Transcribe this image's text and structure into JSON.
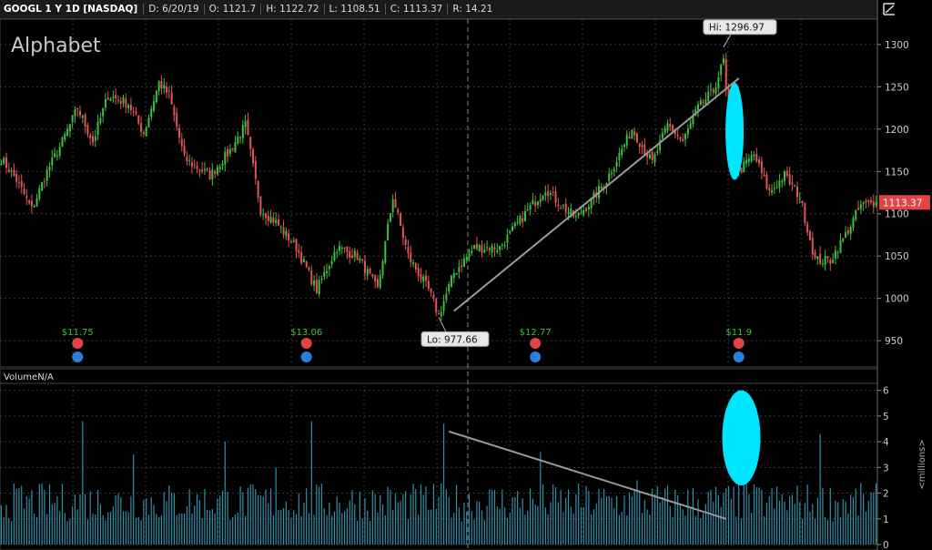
{
  "header": {
    "symbol": "GOOGL 1 Y 1D [NASDAQ]",
    "date": "D: 6/20/19",
    "open": "O: 1121.7",
    "high": "H: 1122.72",
    "low": "L: 1108.51",
    "close": "C: 1113.37",
    "range": "R: 14.21",
    "icon": "expand-icon"
  },
  "watermark": "Alphabet",
  "colors": {
    "up": "#3fbf3f",
    "down": "#e05555",
    "volume": "#2f8fa8",
    "highlight": "#00e5ff",
    "price_badge": "#e04444"
  },
  "chart_data": [
    {
      "type": "candlestick",
      "title": "GOOGL 1 Y 1D [NASDAQ]",
      "ylim": [
        920,
        1330
      ],
      "yticks": [
        950,
        1000,
        1050,
        1100,
        1150,
        1200,
        1250,
        1300
      ],
      "last_price": "1113.37",
      "high_label": "Hi: 1296.97",
      "low_label": "Lo: 977.66",
      "high": 1296.97,
      "low": 977.66,
      "knots": [
        [
          0,
          1165
        ],
        [
          6,
          1140
        ],
        [
          12,
          1105
        ],
        [
          18,
          1150
        ],
        [
          24,
          1185
        ],
        [
          30,
          1225
        ],
        [
          36,
          1185
        ],
        [
          42,
          1240
        ],
        [
          50,
          1230
        ],
        [
          56,
          1195
        ],
        [
          62,
          1255
        ],
        [
          66,
          1240
        ],
        [
          72,
          1165
        ],
        [
          82,
          1145
        ],
        [
          90,
          1175
        ],
        [
          96,
          1205
        ],
        [
          102,
          1105
        ],
        [
          108,
          1090
        ],
        [
          116,
          1060
        ],
        [
          124,
          1010
        ],
        [
          132,
          1060
        ],
        [
          140,
          1050
        ],
        [
          148,
          1010
        ],
        [
          154,
          1120
        ],
        [
          160,
          1050
        ],
        [
          168,
          1010
        ],
        [
          172,
          980
        ],
        [
          178,
          1030
        ],
        [
          186,
          1060
        ],
        [
          196,
          1060
        ],
        [
          206,
          1100
        ],
        [
          214,
          1130
        ],
        [
          220,
          1110
        ],
        [
          226,
          1095
        ],
        [
          232,
          1115
        ],
        [
          238,
          1140
        ],
        [
          248,
          1200
        ],
        [
          256,
          1160
        ],
        [
          262,
          1205
        ],
        [
          268,
          1185
        ],
        [
          274,
          1225
        ],
        [
          280,
          1245
        ],
        [
          284,
          1281
        ],
        [
          287,
          1172
        ],
        [
          290,
          1150
        ],
        [
          296,
          1170
        ],
        [
          302,
          1125
        ],
        [
          308,
          1145
        ],
        [
          314,
          1120
        ],
        [
          320,
          1045
        ],
        [
          326,
          1045
        ],
        [
          332,
          1075
        ],
        [
          338,
          1110
        ],
        [
          344,
          1113
        ]
      ],
      "dividends": [
        {
          "label": "$11.75",
          "index": 30
        },
        {
          "label": "$13.06",
          "index": 120
        },
        {
          "label": "$12.77",
          "index": 210
        },
        {
          "label": "$11.9",
          "index": 290
        }
      ],
      "trendline": {
        "from": {
          "index": 178,
          "value": 985
        },
        "to": {
          "index": 290,
          "value": 1260
        }
      },
      "highlight": {
        "index": 288,
        "from": 1140,
        "to": 1255
      }
    },
    {
      "type": "bar",
      "title": "VolumeN/A",
      "ylabel": "<millions>",
      "ylim": [
        0,
        6.2
      ],
      "yticks": [
        0,
        1,
        2,
        3,
        4,
        5,
        6
      ],
      "spikes": [
        [
          32,
          4.8
        ],
        [
          52,
          3.5
        ],
        [
          88,
          4.0
        ],
        [
          108,
          3.0
        ],
        [
          122,
          4.8
        ],
        [
          174,
          4.7
        ],
        [
          212,
          3.6
        ],
        [
          250,
          2.5
        ],
        [
          290,
          6.0
        ],
        [
          292,
          3.5
        ],
        [
          322,
          4.3
        ]
      ],
      "trendline": {
        "from": {
          "index": 176,
          "value": 4.4
        },
        "to": {
          "index": 285,
          "value": 1.0
        }
      },
      "highlight": {
        "index": 291,
        "from": 2.3,
        "to": 6.0
      }
    }
  ]
}
